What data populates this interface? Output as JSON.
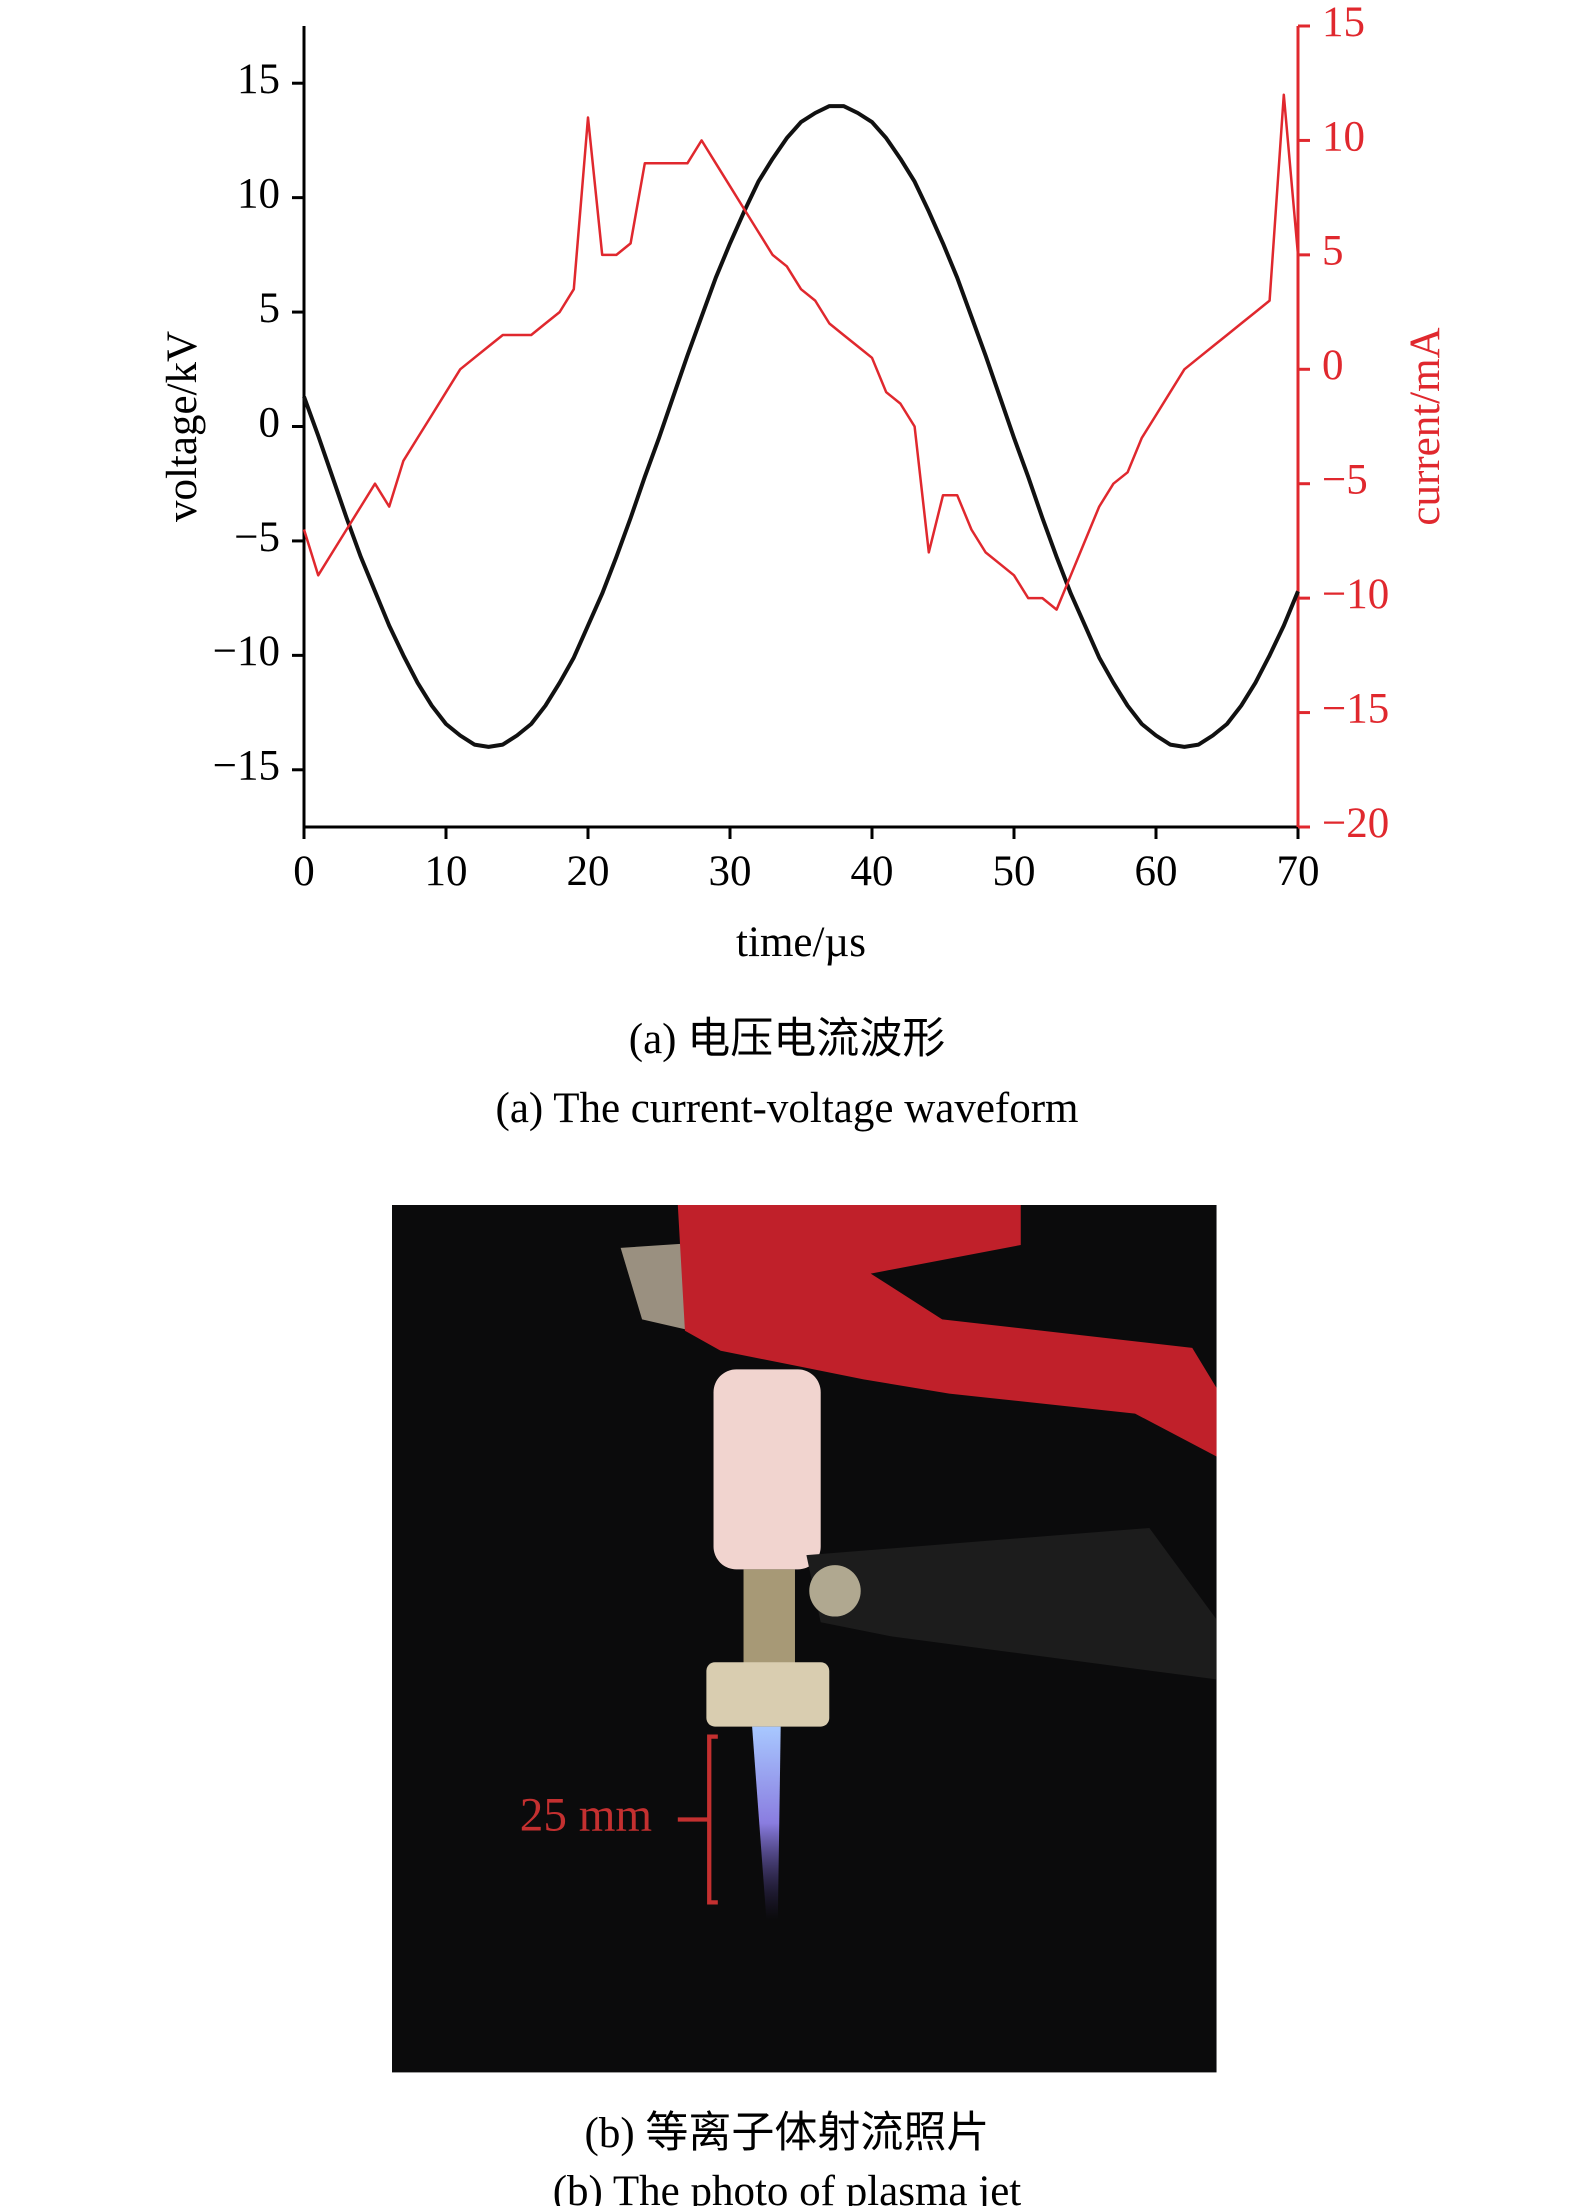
{
  "chart_data": {
    "type": "line",
    "xlabel": "time/µs",
    "ylabel": "voltage/kV",
    "y2label": "current/mA",
    "x": [
      0,
      1,
      2,
      3,
      4,
      5,
      6,
      7,
      8,
      9,
      10,
      11,
      12,
      13,
      14,
      15,
      16,
      17,
      18,
      19,
      20,
      21,
      22,
      23,
      24,
      25,
      26,
      27,
      28,
      29,
      30,
      31,
      32,
      33,
      34,
      35,
      36,
      37,
      38,
      39,
      40,
      41,
      42,
      43,
      44,
      45,
      46,
      47,
      48,
      49,
      50,
      51,
      52,
      53,
      54,
      55,
      56,
      57,
      58,
      59,
      60,
      61,
      62,
      63,
      64,
      65,
      66,
      67,
      68,
      69,
      70
    ],
    "series": [
      {
        "name": "voltage",
        "color": "#111111",
        "axis": "y",
        "values": [
          1.3,
          -0.4,
          -2.2,
          -4.0,
          -5.7,
          -7.2,
          -8.7,
          -10.0,
          -11.2,
          -12.2,
          -13.0,
          -13.5,
          -13.9,
          -14.0,
          -13.9,
          -13.5,
          -13.0,
          -12.2,
          -11.2,
          -10.1,
          -8.7,
          -7.3,
          -5.7,
          -4.0,
          -2.2,
          -0.5,
          1.3,
          3.1,
          4.8,
          6.5,
          8.0,
          9.4,
          10.7,
          11.7,
          12.6,
          13.3,
          13.7,
          14.0,
          14.0,
          13.7,
          13.3,
          12.6,
          11.7,
          10.7,
          9.4,
          8.0,
          6.5,
          4.8,
          3.1,
          1.3,
          -0.5,
          -2.2,
          -4.0,
          -5.7,
          -7.3,
          -8.7,
          -10.1,
          -11.2,
          -12.2,
          -13.0,
          -13.5,
          -13.9,
          -14.0,
          -13.9,
          -13.5,
          -13.0,
          -12.2,
          -11.2,
          -10.0,
          -8.7,
          -7.2
        ]
      },
      {
        "name": "current",
        "color": "#e0282e",
        "axis": "y2",
        "values": [
          -7,
          -9,
          -8,
          -7,
          -6,
          -5,
          -6,
          -4,
          -3,
          -2,
          -1,
          0,
          0.5,
          1,
          1.5,
          1.5,
          1.5,
          2,
          2.5,
          3.5,
          11,
          5,
          5,
          5.5,
          9,
          9,
          9,
          9,
          10,
          9,
          8,
          7,
          6,
          5,
          4.5,
          3.5,
          3,
          2,
          1.5,
          1,
          0.5,
          -1,
          -1.5,
          -2.5,
          -8,
          -5.5,
          -5.5,
          -7,
          -8,
          -8.5,
          -9,
          -10,
          -10,
          -10.5,
          -9,
          -7.5,
          -6,
          -5,
          -4.5,
          -3,
          -2,
          -1,
          0,
          0.5,
          1,
          1.5,
          2,
          2.5,
          3,
          12,
          5
        ]
      }
    ],
    "xlim": [
      0,
      70
    ],
    "xticks": [
      0,
      10,
      20,
      30,
      40,
      50,
      60,
      70
    ],
    "ylim": [
      -17.5,
      17.5
    ],
    "yticks": [
      {
        "value": -15,
        "label": "−15"
      },
      {
        "value": -10,
        "label": "−10"
      },
      {
        "value": -5,
        "label": "−5"
      },
      0,
      5,
      10,
      15
    ],
    "y2lim": [
      -20,
      15
    ],
    "y2ticks": [
      {
        "value": -20,
        "label": "−20"
      },
      {
        "value": -15,
        "label": "−15"
      },
      {
        "value": -10,
        "label": "−10"
      },
      {
        "value": -5,
        "label": "−5"
      },
      0,
      5,
      10,
      15
    ],
    "y2color": "#e0282e"
  },
  "caption_a": [
    "(a) 电压电流波形",
    "(a) The current-voltage waveform"
  ],
  "photo": {
    "scale_label": "25 mm"
  },
  "caption_b": [
    "(b) 等离子体射流照片",
    "(b) The photo of plasma jet"
  ]
}
